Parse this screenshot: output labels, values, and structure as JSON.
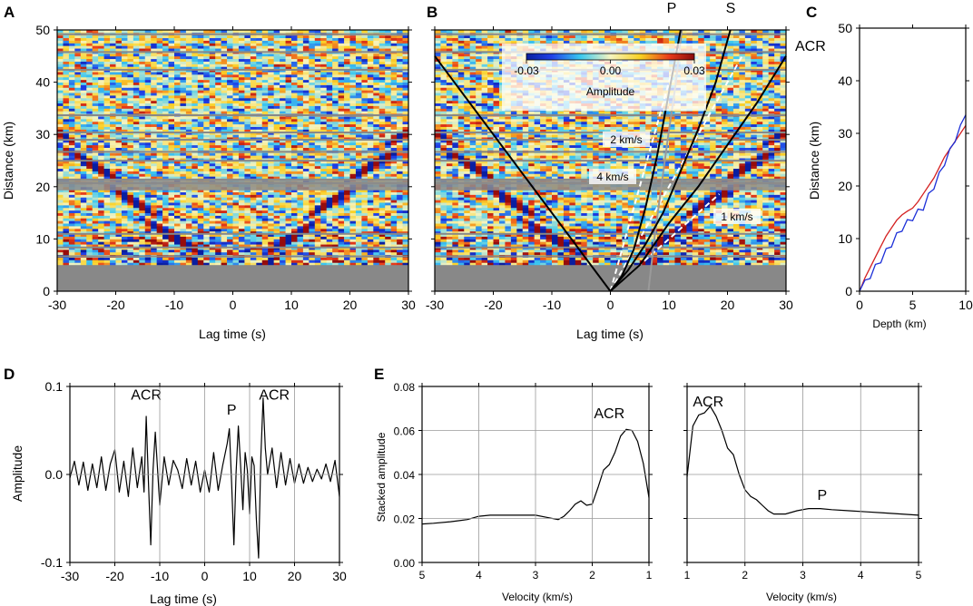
{
  "figure": {
    "panel_labels": [
      "A",
      "B",
      "C",
      "D",
      "E"
    ]
  },
  "chart_data": [
    {
      "panel": "A",
      "type": "heatmap",
      "title": "",
      "xlabel": "Lag time (s)",
      "ylabel": "Distance (km)",
      "xlim": [
        -30,
        30
      ],
      "ylim": [
        0,
        50
      ],
      "xticks": [
        -30,
        -20,
        -10,
        0,
        10,
        20,
        30
      ],
      "yticks": [
        0,
        10,
        20,
        30,
        40,
        50
      ],
      "no_data_below_km": 5,
      "moveout_velocity_kms": 1.0,
      "colormap": "blue-cyan-yellow-red",
      "colors": {
        "negative": "#1a2fd0",
        "zero": "#f6f3b0",
        "positive": "#d81e1e",
        "nodata": "#888888"
      }
    },
    {
      "panel": "B",
      "type": "heatmap",
      "xlabel": "Lag time (s)",
      "ylabel": "",
      "xlim": [
        -30,
        30
      ],
      "ylim": [
        0,
        50
      ],
      "xticks": [
        -30,
        -20,
        -10,
        0,
        10,
        20,
        30
      ],
      "yticks": [
        0,
        10,
        20,
        30,
        40,
        50
      ],
      "colorbar": {
        "label": "Amplitude",
        "min": -0.03,
        "mid": 0.0,
        "max": 0.03,
        "tick_labels": [
          "-0.03",
          "0.00",
          "0.03"
        ]
      },
      "phase_labels": [
        "P",
        "S",
        "ACR"
      ],
      "velocity_lines": [
        {
          "label": "2 km/s",
          "velocity_kms": 2,
          "color": "#ffffff"
        },
        {
          "label": "4 km/s",
          "velocity_kms": 4,
          "color": "#ffffff"
        },
        {
          "label": "1 km/s",
          "velocity_kms": 1,
          "color": "#ffffff"
        }
      ],
      "black_curves": [
        {
          "name": "ACR negative branch",
          "points": [
            [
              0,
              0
            ],
            [
              -30,
              45
            ]
          ]
        },
        {
          "name": "ACR positive branch",
          "points": [
            [
              0,
              0
            ],
            [
              5,
              5
            ],
            [
              10,
              13
            ],
            [
              15,
              20
            ],
            [
              20,
              28
            ],
            [
              25,
              36
            ],
            [
              30,
              45
            ]
          ]
        },
        {
          "name": "P",
          "points": [
            [
              0,
              0
            ],
            [
              2,
              3
            ],
            [
              4,
              8
            ],
            [
              6,
              16
            ],
            [
              8,
              26
            ],
            [
              10,
              38
            ],
            [
              12,
              50
            ]
          ]
        },
        {
          "name": "S",
          "points": [
            [
              0,
              0
            ],
            [
              3,
              4
            ],
            [
              6,
              9
            ],
            [
              9,
              15
            ],
            [
              12,
              23
            ],
            [
              15,
              31
            ],
            [
              18,
              40
            ],
            [
              20.5,
              50
            ]
          ]
        }
      ],
      "grey_curve": {
        "name": "P reference",
        "points": [
          [
            6.5,
            0
          ],
          [
            7.5,
            10
          ],
          [
            8.7,
            20
          ],
          [
            9.9,
            30
          ],
          [
            11.2,
            40
          ],
          [
            12.2,
            50
          ]
        ]
      }
    },
    {
      "panel": "C",
      "type": "line",
      "xlabel": "Depth (km)",
      "ylabel": "Distance (km)",
      "xlim": [
        0,
        10
      ],
      "ylim": [
        0,
        50
      ],
      "xticks": [
        0,
        5,
        10
      ],
      "yticks": [
        0,
        10,
        20,
        30,
        40,
        50
      ],
      "series": [
        {
          "name": "red",
          "color": "#d42020",
          "x": [
            0,
            0.5,
            1,
            1.5,
            2,
            2.5,
            3,
            3.5,
            4,
            4.5,
            5,
            5.5,
            6,
            6.5,
            7,
            7.5,
            8,
            8.5,
            9,
            9.5,
            10
          ],
          "y": [
            0,
            2.5,
            4.5,
            6.5,
            8.5,
            10.5,
            12,
            13.5,
            14.5,
            15.2,
            15.8,
            17,
            18.5,
            20,
            21.5,
            23.5,
            25.5,
            27,
            28.5,
            30,
            31.5
          ]
        },
        {
          "name": "blue",
          "color": "#1c2fd8",
          "x": [
            0,
            0.5,
            1,
            1.5,
            2,
            2.5,
            3,
            3.5,
            4,
            4.5,
            5,
            5.5,
            6,
            6.5,
            7,
            7.5,
            8,
            8.5,
            9,
            9.5,
            10
          ],
          "y": [
            0,
            1.5,
            3,
            4.5,
            6,
            7.5,
            9,
            10.5,
            12,
            13,
            14,
            15,
            16,
            18,
            20,
            22,
            24.5,
            26.5,
            29,
            31,
            33.5
          ]
        }
      ]
    },
    {
      "panel": "D",
      "type": "line",
      "xlabel": "Lag time (s)",
      "ylabel": "Amplitude",
      "xlim": [
        -30,
        30
      ],
      "ylim": [
        -0.1,
        0.1
      ],
      "xticks": [
        -30,
        -20,
        -10,
        0,
        10,
        20,
        30
      ],
      "yticks": [
        -0.1,
        0.0,
        0.1
      ],
      "ytick_labels": [
        "-0.1",
        "0.0",
        "0.1"
      ],
      "annotations": [
        {
          "text": "ACR",
          "x": -13,
          "y": 0.085
        },
        {
          "text": "P",
          "x": 6,
          "y": 0.068
        },
        {
          "text": "ACR",
          "x": 15.5,
          "y": 0.085
        }
      ],
      "x": [
        -30,
        -29,
        -28,
        -27,
        -26,
        -25,
        -24,
        -23,
        -22,
        -21,
        -20,
        -19,
        -18,
        -17,
        -16,
        -15,
        -14,
        -13.5,
        -13,
        -12.5,
        -12,
        -11.5,
        -11,
        -10,
        -9,
        -8,
        -7,
        -6,
        -5,
        -4,
        -3,
        -2,
        -1,
        0,
        1,
        2,
        3,
        4,
        5,
        5.5,
        6,
        6.5,
        7,
        7.5,
        8,
        8.5,
        9,
        9.5,
        10,
        10.5,
        11,
        11.5,
        12,
        12.5,
        13,
        13.5,
        14,
        15,
        16,
        17,
        18,
        19,
        20,
        21,
        22,
        23,
        24,
        25,
        26,
        27,
        28,
        29,
        30
      ],
      "y": [
        -0.004,
        0.015,
        -0.012,
        0.014,
        -0.018,
        0.012,
        -0.015,
        0.02,
        -0.018,
        0.012,
        0.028,
        -0.02,
        0.015,
        -0.025,
        0.03,
        -0.015,
        0.02,
        -0.02,
        0.066,
        -0.01,
        -0.08,
        0.005,
        0.048,
        -0.035,
        0.02,
        -0.012,
        0.016,
        0.005,
        -0.016,
        0.018,
        -0.012,
        0.015,
        -0.02,
        0.005,
        -0.02,
        0.025,
        -0.018,
        0.01,
        0.035,
        0.052,
        -0.01,
        -0.08,
        0.002,
        0.055,
        0.01,
        -0.04,
        0.025,
        0.005,
        -0.045,
        0.02,
        0.01,
        -0.05,
        -0.095,
        0.02,
        0.087,
        0.03,
        0.0,
        0.03,
        -0.015,
        0.025,
        -0.012,
        0.018,
        -0.01,
        0.012,
        -0.01,
        0.008,
        -0.008,
        0.006,
        -0.005,
        0.012,
        -0.008,
        0.016,
        -0.025
      ]
    },
    {
      "panel": "E-left",
      "type": "line",
      "xlabel": "Velocity (km/s)",
      "ylabel": "Stacked amplitude",
      "xlim": [
        5,
        1
      ],
      "ylim": [
        0,
        0.08
      ],
      "xticks": [
        5,
        4,
        3,
        2,
        1
      ],
      "yticks": [
        0,
        0.02,
        0.04,
        0.06,
        0.08
      ],
      "ytick_labels": [
        "0.00",
        "0.02",
        "0.04",
        "0.06",
        "0.08"
      ],
      "annotations": [
        {
          "text": "ACR",
          "x": 1.7,
          "y": 0.0655
        }
      ],
      "x": [
        5,
        4.8,
        4.5,
        4.2,
        4.0,
        3.8,
        3.5,
        3.2,
        3.0,
        2.8,
        2.6,
        2.5,
        2.4,
        2.3,
        2.2,
        2.1,
        2.0,
        1.9,
        1.8,
        1.7,
        1.6,
        1.5,
        1.4,
        1.3,
        1.2,
        1.1,
        1.0
      ],
      "y": [
        0.0175,
        0.0178,
        0.0185,
        0.0195,
        0.021,
        0.0215,
        0.0215,
        0.0215,
        0.0215,
        0.0205,
        0.0195,
        0.021,
        0.0235,
        0.0265,
        0.028,
        0.026,
        0.0265,
        0.034,
        0.042,
        0.0445,
        0.05,
        0.0575,
        0.0605,
        0.06,
        0.055,
        0.045,
        0.0295
      ]
    },
    {
      "panel": "E-right",
      "type": "line",
      "xlabel": "Velocity (km/s)",
      "ylabel": "",
      "xlim": [
        1,
        5
      ],
      "ylim": [
        0,
        0.08
      ],
      "xticks": [
        1,
        2,
        3,
        4,
        5
      ],
      "yticks": [
        0,
        0.02,
        0.04,
        0.06,
        0.08
      ],
      "annotations": [
        {
          "text": "ACR",
          "x": 1.1,
          "y": 0.071
        },
        {
          "text": "P",
          "x": 3.25,
          "y": 0.0285
        }
      ],
      "x": [
        1.0,
        1.1,
        1.2,
        1.3,
        1.4,
        1.5,
        1.6,
        1.7,
        1.8,
        1.9,
        2.0,
        2.1,
        2.2,
        2.3,
        2.4,
        2.5,
        2.7,
        2.9,
        3.1,
        3.3,
        3.5,
        3.8,
        4.1,
        4.4,
        4.7,
        5.0
      ],
      "y": [
        0.039,
        0.062,
        0.067,
        0.068,
        0.071,
        0.0665,
        0.06,
        0.052,
        0.049,
        0.04,
        0.033,
        0.03,
        0.0285,
        0.026,
        0.0235,
        0.022,
        0.022,
        0.0235,
        0.0245,
        0.0245,
        0.024,
        0.0235,
        0.023,
        0.0225,
        0.022,
        0.0215
      ]
    }
  ]
}
